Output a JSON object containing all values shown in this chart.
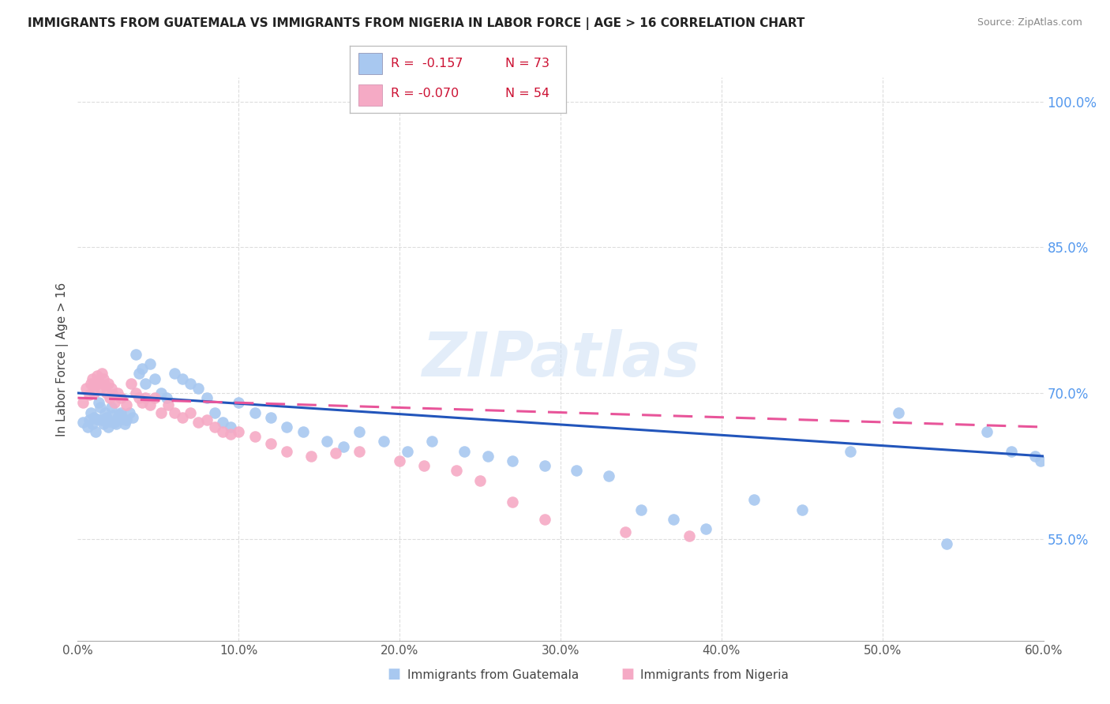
{
  "title": "IMMIGRANTS FROM GUATEMALA VS IMMIGRANTS FROM NIGERIA IN LABOR FORCE | AGE > 16 CORRELATION CHART",
  "source": "Source: ZipAtlas.com",
  "ylabel": "In Labor Force | Age > 16",
  "xlim": [
    0.0,
    0.6
  ],
  "ylim": [
    0.445,
    1.025
  ],
  "xticks": [
    0.0,
    0.1,
    0.2,
    0.3,
    0.4,
    0.5,
    0.6
  ],
  "xticklabels": [
    "0.0%",
    "10.0%",
    "20.0%",
    "30.0%",
    "40.0%",
    "50.0%",
    "60.0%"
  ],
  "yticks_right": [
    0.55,
    0.7,
    0.85,
    1.0
  ],
  "yticklabels_right": [
    "55.0%",
    "70.0%",
    "85.0%",
    "100.0%"
  ],
  "color_guatemala": "#a8c8f0",
  "color_nigeria": "#f5aac5",
  "color_trend_guatemala": "#2255bb",
  "color_trend_nigeria": "#e8559a",
  "color_axis_right": "#5599ee",
  "color_grid": "#dddddd",
  "watermark": "ZIPatlas",
  "legend_label_guat": "Immigrants from Guatemala",
  "legend_label_nig": "Immigrants from Nigeria",
  "guat_x": [
    0.003,
    0.006,
    0.007,
    0.008,
    0.009,
    0.01,
    0.011,
    0.012,
    0.013,
    0.014,
    0.015,
    0.016,
    0.017,
    0.018,
    0.019,
    0.02,
    0.021,
    0.022,
    0.023,
    0.024,
    0.025,
    0.026,
    0.027,
    0.028,
    0.029,
    0.03,
    0.032,
    0.034,
    0.036,
    0.038,
    0.04,
    0.042,
    0.045,
    0.048,
    0.052,
    0.055,
    0.06,
    0.065,
    0.07,
    0.075,
    0.08,
    0.085,
    0.09,
    0.095,
    0.1,
    0.11,
    0.12,
    0.13,
    0.14,
    0.155,
    0.165,
    0.175,
    0.19,
    0.205,
    0.22,
    0.24,
    0.255,
    0.27,
    0.29,
    0.31,
    0.33,
    0.35,
    0.37,
    0.39,
    0.42,
    0.45,
    0.48,
    0.51,
    0.54,
    0.565,
    0.58,
    0.595,
    0.598
  ],
  "guat_y": [
    0.67,
    0.665,
    0.672,
    0.68,
    0.668,
    0.675,
    0.66,
    0.673,
    0.69,
    0.685,
    0.672,
    0.668,
    0.68,
    0.675,
    0.665,
    0.671,
    0.685,
    0.677,
    0.67,
    0.668,
    0.675,
    0.678,
    0.68,
    0.673,
    0.668,
    0.672,
    0.68,
    0.675,
    0.74,
    0.72,
    0.725,
    0.71,
    0.73,
    0.715,
    0.7,
    0.695,
    0.72,
    0.715,
    0.71,
    0.705,
    0.695,
    0.68,
    0.67,
    0.665,
    0.69,
    0.68,
    0.675,
    0.665,
    0.66,
    0.65,
    0.645,
    0.66,
    0.65,
    0.64,
    0.65,
    0.64,
    0.635,
    0.63,
    0.625,
    0.62,
    0.615,
    0.58,
    0.57,
    0.56,
    0.59,
    0.58,
    0.64,
    0.68,
    0.545,
    0.66,
    0.64,
    0.635,
    0.63
  ],
  "nig_x": [
    0.003,
    0.005,
    0.007,
    0.008,
    0.009,
    0.01,
    0.011,
    0.012,
    0.013,
    0.014,
    0.015,
    0.016,
    0.017,
    0.018,
    0.019,
    0.02,
    0.021,
    0.022,
    0.023,
    0.025,
    0.027,
    0.03,
    0.033,
    0.036,
    0.038,
    0.04,
    0.042,
    0.045,
    0.048,
    0.052,
    0.056,
    0.06,
    0.065,
    0.07,
    0.075,
    0.08,
    0.085,
    0.09,
    0.095,
    0.1,
    0.11,
    0.12,
    0.13,
    0.145,
    0.16,
    0.175,
    0.2,
    0.215,
    0.235,
    0.25,
    0.27,
    0.29,
    0.34,
    0.38
  ],
  "nig_y": [
    0.69,
    0.705,
    0.698,
    0.71,
    0.715,
    0.7,
    0.708,
    0.718,
    0.712,
    0.705,
    0.72,
    0.715,
    0.708,
    0.7,
    0.71,
    0.695,
    0.705,
    0.698,
    0.69,
    0.7,
    0.695,
    0.688,
    0.71,
    0.7,
    0.695,
    0.69,
    0.695,
    0.688,
    0.695,
    0.68,
    0.688,
    0.68,
    0.675,
    0.68,
    0.67,
    0.672,
    0.665,
    0.66,
    0.658,
    0.66,
    0.655,
    0.648,
    0.64,
    0.635,
    0.638,
    0.64,
    0.63,
    0.625,
    0.62,
    0.61,
    0.588,
    0.57,
    0.557,
    0.553
  ]
}
